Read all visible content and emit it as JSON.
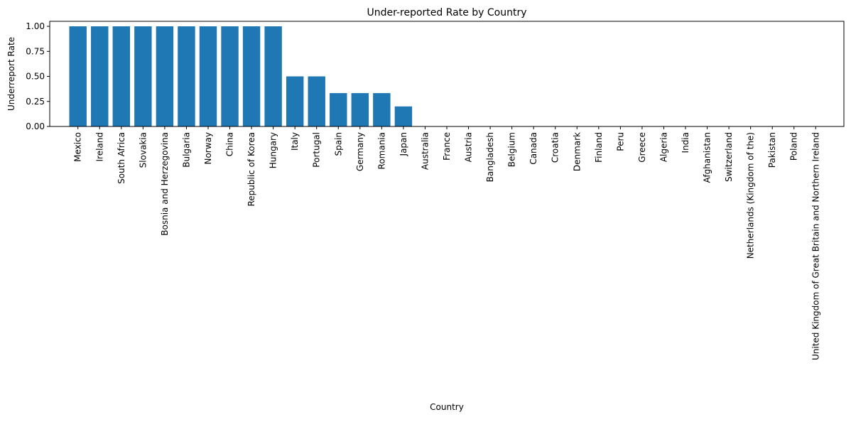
{
  "chart_data": {
    "type": "bar",
    "title": "Under-reported Rate by Country",
    "xlabel": "Country",
    "ylabel": "Underreport Rate",
    "ylim": [
      0,
      1.05
    ],
    "yticks": [
      "0.00",
      "0.25",
      "0.50",
      "0.75",
      "1.00"
    ],
    "grid": false,
    "legend": "none",
    "bar_color": "#1f77b4",
    "categories": [
      "Mexico",
      "Ireland",
      "South Africa",
      "Slovakia",
      "Bosnia and Herzegovina",
      "Bulgaria",
      "Norway",
      "China",
      "Republic of Korea",
      "Hungary",
      "Italy",
      "Portugal",
      "Spain",
      "Germany",
      "Romania",
      "Japan",
      "Australia",
      "France",
      "Austria",
      "Bangladesh",
      "Belgium",
      "Canada",
      "Croatia",
      "Denmark",
      "Finland",
      "Peru",
      "Greece",
      "Algeria",
      "India",
      "Afghanistan",
      "Switzerland",
      "Netherlands (Kingdom of the)",
      "Pakistan",
      "Poland",
      "United Kingdom of Great Britain and Northern Ireland"
    ],
    "values": [
      1.0,
      1.0,
      1.0,
      1.0,
      1.0,
      1.0,
      1.0,
      1.0,
      1.0,
      1.0,
      0.5,
      0.5,
      0.333,
      0.333,
      0.333,
      0.2,
      0,
      0,
      0,
      0,
      0,
      0,
      0,
      0,
      0,
      0,
      0,
      0,
      0,
      0,
      0,
      0,
      0,
      0,
      0
    ]
  }
}
